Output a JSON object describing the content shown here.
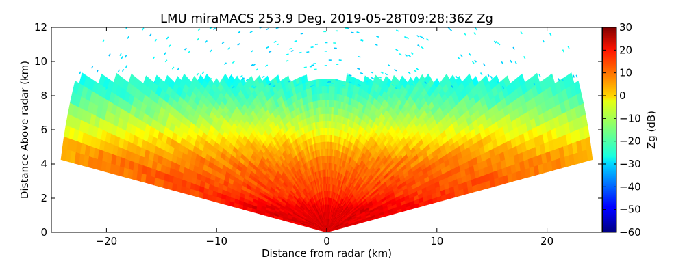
{
  "chart_data": {
    "type": "heatmap",
    "title": "LMU miraMACS 253.9 Deg. 2019-05-28T09:28:36Z  Zg",
    "xlabel": "Distance from radar (km)",
    "ylabel": "Distance Above radar  (km)",
    "xlim": [
      -25,
      25
    ],
    "ylim": [
      0,
      12
    ],
    "x_ticks": [
      -20,
      -10,
      0,
      10,
      20
    ],
    "x_tick_labels": [
      "−20",
      "−10",
      "0",
      "10",
      "20"
    ],
    "y_ticks": [
      0,
      2,
      4,
      6,
      8,
      10,
      12
    ],
    "y_tick_labels": [
      "0",
      "2",
      "4",
      "6",
      "8",
      "10",
      "12"
    ],
    "colorbar": {
      "label": "Zg (dB)",
      "range": [
        -60,
        30
      ],
      "ticks": [
        30,
        20,
        10,
        0,
        -10,
        -20,
        -30,
        -40,
        -50,
        -60
      ],
      "tick_labels": [
        "30",
        "20",
        "10",
        "0",
        "−10",
        "−20",
        "−30",
        "−40",
        "−50",
        "−60"
      ],
      "colormap": "jet"
    },
    "scan": {
      "angle_min_deg": 10,
      "angle_max_deg": 170,
      "max_range_km": 24.5
    },
    "reflectivity_profile": [
      {
        "height_km": 0.3,
        "zg_db": 22
      },
      {
        "height_km": 1.5,
        "zg_db": 20
      },
      {
        "height_km": 2.2,
        "zg_db": 14
      },
      {
        "height_km": 3.2,
        "zg_db": 11
      },
      {
        "height_km": 4.2,
        "zg_db": 7
      },
      {
        "height_km": 5.2,
        "zg_db": 1
      },
      {
        "height_km": 6.0,
        "zg_db": -6
      },
      {
        "height_km": 7.0,
        "zg_db": -13
      },
      {
        "height_km": 8.0,
        "zg_db": -20
      },
      {
        "height_km": 9.0,
        "zg_db": -24
      },
      {
        "height_km": 11.5,
        "zg_db": -27
      }
    ]
  }
}
